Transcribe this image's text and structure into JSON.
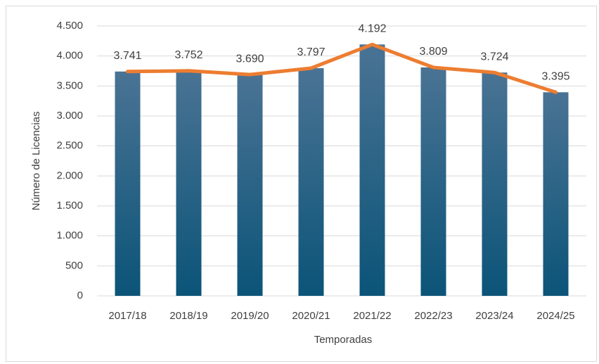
{
  "chart_data": {
    "type": "bar",
    "x_label": "Temporadas",
    "y_label": "Número de Licencias",
    "categories": [
      "2017/18",
      "2018/19",
      "2019/20",
      "2020/21",
      "2021/22",
      "2022/23",
      "2023/24",
      "2024/25"
    ],
    "values": [
      3741,
      3752,
      3690,
      3797,
      4192,
      3809,
      3724,
      3395
    ],
    "value_labels": [
      "3.741",
      "3.752",
      "3.690",
      "3.797",
      "4.192",
      "3.809",
      "3.724",
      "3.395"
    ],
    "color": "#0b5478",
    "line_overlay": true,
    "line_color": "#ed7d31",
    "ylim": [
      0,
      4500
    ],
    "yticks": [
      0,
      500,
      {
        "value": 1000,
        "label": "1.000"
      },
      {
        "value": 1500,
        "label": "1.500"
      },
      {
        "value": 2000,
        "label": "2.000"
      },
      {
        "value": 2500,
        "label": "2.500"
      },
      {
        "value": 3000,
        "label": "3.000"
      },
      {
        "value": 3500,
        "label": "3.500"
      },
      {
        "value": 4000,
        "label": "4.000"
      },
      {
        "value": 4500,
        "label": "4.500"
      }
    ],
    "grid": true
  }
}
